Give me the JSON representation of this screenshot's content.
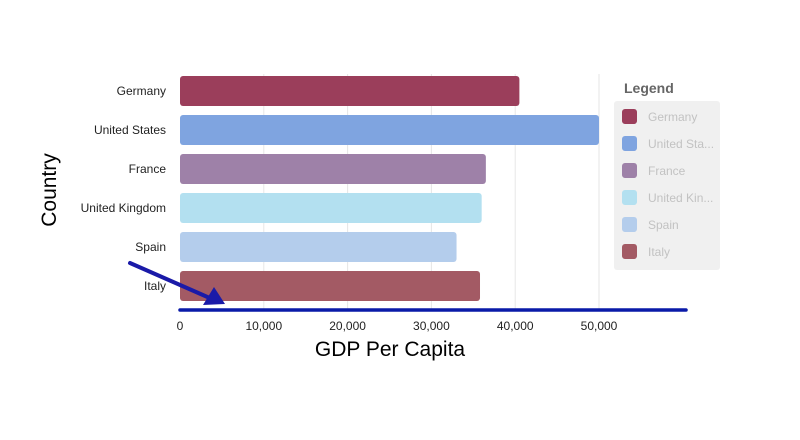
{
  "chart_data": {
    "type": "bar",
    "orientation": "horizontal",
    "categories": [
      "Germany",
      "United States",
      "France",
      "United Kingdom",
      "Spain",
      "Italy"
    ],
    "values": [
      40500,
      50000,
      36500,
      36000,
      33000,
      35800
    ],
    "colors": [
      "#9b3e5b",
      "#7fa4e0",
      "#9e81a8",
      "#b3e0f0",
      "#b4cdec",
      "#a35a64"
    ],
    "xlabel": "GDP Per Capita",
    "ylabel": "Country",
    "xlim": [
      0,
      60000
    ],
    "xticks": [
      0,
      10000,
      20000,
      30000,
      40000,
      50000
    ],
    "xtick_labels": [
      "0",
      "10,000",
      "20,000",
      "30,000",
      "40,000",
      "50,000"
    ],
    "grid": "vertical",
    "legend": {
      "title": "Legend",
      "position": "right",
      "entries": [
        "Germany",
        "United Sta...",
        "France",
        "United Kin...",
        "Spain",
        "Italy"
      ]
    },
    "annotations": {
      "arrow_color": "#1a1aa8",
      "axis_line_color": "#0a1aa8"
    }
  }
}
